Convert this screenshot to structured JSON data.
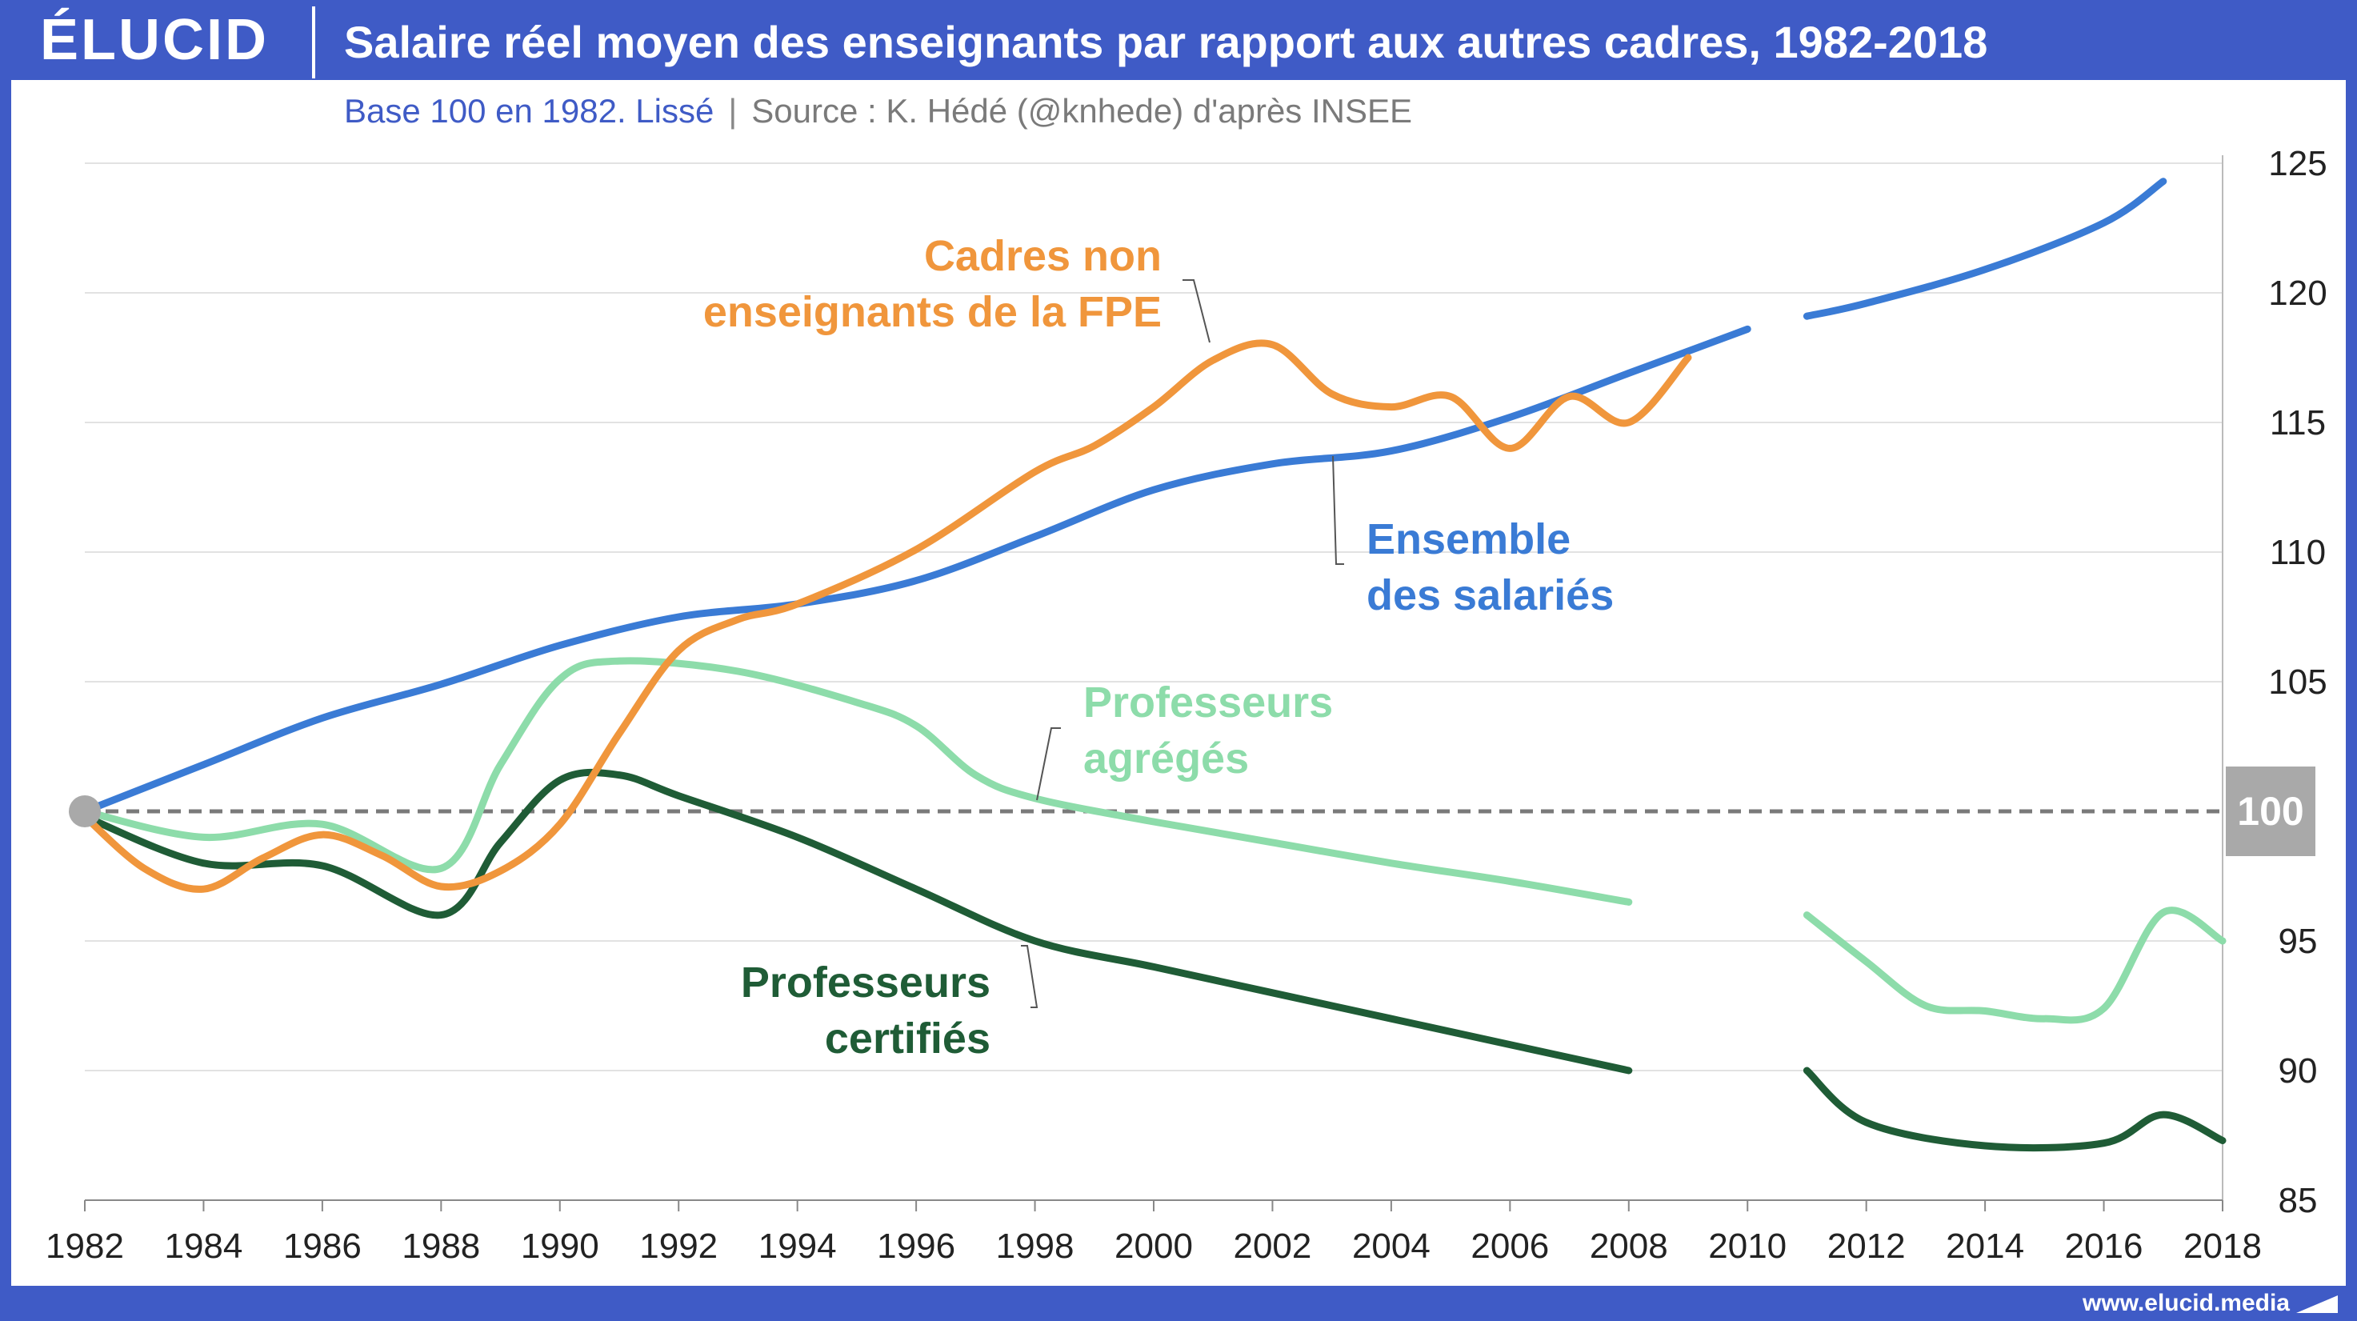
{
  "header": {
    "logo": "ÉLUCID",
    "title": "Salaire réel moyen des enseignants par rapport aux autres cadres, 1982-2018"
  },
  "subtitle": {
    "base": "Base 100 en 1982. Lissé",
    "separator": "|",
    "source": "Source : K. Hédé (@knhede) d'après INSEE"
  },
  "footer": {
    "url": "www.elucid.media"
  },
  "colors": {
    "brand": "#3f5bc6",
    "ensemble": "#3a7bd5",
    "cadres": "#f0963c",
    "agreges": "#8ddcaa",
    "certifies": "#1f5c36",
    "reference": "#7a7a7a"
  },
  "chart_data": {
    "type": "line",
    "title": "Salaire réel moyen des enseignants par rapport aux autres cadres, 1982-2018",
    "xlabel": "",
    "ylabel": "",
    "xlim": [
      1982,
      2018
    ],
    "ylim": [
      85,
      125
    ],
    "x_ticks": [
      "1982",
      "1984",
      "1986",
      "1988",
      "1990",
      "1992",
      "1994",
      "1996",
      "1998",
      "2000",
      "2002",
      "2004",
      "2006",
      "2008",
      "2010",
      "2012",
      "2014",
      "2016",
      "2018"
    ],
    "y_ticks": [
      "85",
      "90",
      "95",
      "105",
      "110",
      "115",
      "120",
      "125"
    ],
    "reference_value": 100,
    "reference_label": "100",
    "grid": "horizontal",
    "series": [
      {
        "name": "Ensemble des salariés",
        "label_lines": [
          "Ensemble",
          "des salariés"
        ],
        "color": "#3a7bd5",
        "segments": [
          [
            [
              1982,
              100
            ],
            [
              1984,
              101.8
            ],
            [
              1986,
              103.6
            ],
            [
              1988,
              104.9
            ],
            [
              1990,
              106.4
            ],
            [
              1992,
              107.5
            ],
            [
              1994,
              108
            ],
            [
              1996,
              108.9
            ],
            [
              1998,
              110.6
            ],
            [
              2000,
              112.4
            ],
            [
              2002,
              113.4
            ],
            [
              2004,
              113.9
            ],
            [
              2006,
              115.2
            ],
            [
              2008,
              116.9
            ],
            [
              2010,
              118.6
            ]
          ],
          [
            [
              2011,
              119.1
            ],
            [
              2012,
              119.6
            ],
            [
              2014,
              120.9
            ],
            [
              2016,
              122.7
            ],
            [
              2017,
              124.3
            ]
          ]
        ]
      },
      {
        "name": "Cadres non enseignants de la FPE",
        "label_lines": [
          "Cadres non",
          "enseignants de la FPE"
        ],
        "color": "#f0963c",
        "segments": [
          [
            [
              1982,
              99.8
            ],
            [
              1983,
              97.8
            ],
            [
              1984,
              97
            ],
            [
              1985,
              98.2
            ],
            [
              1986,
              99.1
            ],
            [
              1987,
              98.3
            ],
            [
              1988,
              97.1
            ],
            [
              1989,
              97.7
            ],
            [
              1990,
              99.5
            ],
            [
              1991,
              103
            ],
            [
              1992,
              106.2
            ],
            [
              1993,
              107.4
            ],
            [
              1994,
              108
            ],
            [
              1996,
              110.1
            ],
            [
              1998,
              113.1
            ],
            [
              1999,
              114.1
            ],
            [
              2000,
              115.6
            ],
            [
              2001,
              117.4
            ],
            [
              2002,
              118
            ],
            [
              2003,
              116.1
            ],
            [
              2004,
              115.6
            ],
            [
              2005,
              116
            ],
            [
              2006,
              114
            ],
            [
              2007,
              116
            ],
            [
              2008,
              115
            ],
            [
              2009,
              117.5
            ]
          ]
        ]
      },
      {
        "name": "Professeurs agrégés",
        "label_lines": [
          "Professeurs",
          "agrégés"
        ],
        "color": "#8ddcaa",
        "segments": [
          [
            [
              1982,
              100
            ],
            [
              1984,
              99
            ],
            [
              1986,
              99.5
            ],
            [
              1988,
              97.8
            ],
            [
              1989,
              101.8
            ],
            [
              1990,
              105.1
            ],
            [
              1991,
              105.8
            ],
            [
              1993,
              105.4
            ],
            [
              1995,
              104.2
            ],
            [
              1996,
              103.3
            ],
            [
              1997,
              101.4
            ],
            [
              1998,
              100.5
            ],
            [
              2000,
              99.6
            ],
            [
              2002,
              98.8
            ],
            [
              2004,
              98
            ],
            [
              2006,
              97.3
            ],
            [
              2008,
              96.5
            ]
          ],
          [
            [
              2011,
              96
            ],
            [
              2012,
              94.2
            ],
            [
              2013,
              92.5
            ],
            [
              2014,
              92.3
            ],
            [
              2015,
              92
            ],
            [
              2016,
              92.4
            ],
            [
              2017,
              96.1
            ],
            [
              2018,
              95
            ]
          ]
        ]
      },
      {
        "name": "Professeurs certifiés",
        "label_lines": [
          "Professeurs",
          "certifiés"
        ],
        "color": "#1f5c36",
        "segments": [
          [
            [
              1982,
              99.8
            ],
            [
              1984,
              98
            ],
            [
              1986,
              97.9
            ],
            [
              1988,
              96
            ],
            [
              1989,
              98.8
            ],
            [
              1990,
              101.2
            ],
            [
              1991,
              101.4
            ],
            [
              1992,
              100.6
            ],
            [
              1994,
              99
            ],
            [
              1996,
              97
            ],
            [
              1998,
              95
            ],
            [
              2000,
              94
            ],
            [
              2002,
              93
            ],
            [
              2004,
              92
            ],
            [
              2006,
              91
            ],
            [
              2008,
              90
            ]
          ],
          [
            [
              2011,
              90
            ],
            [
              2012,
              88
            ],
            [
              2014,
              87.1
            ],
            [
              2016,
              87.2
            ],
            [
              2017,
              88.3
            ],
            [
              2018,
              87.3
            ]
          ]
        ]
      }
    ]
  }
}
